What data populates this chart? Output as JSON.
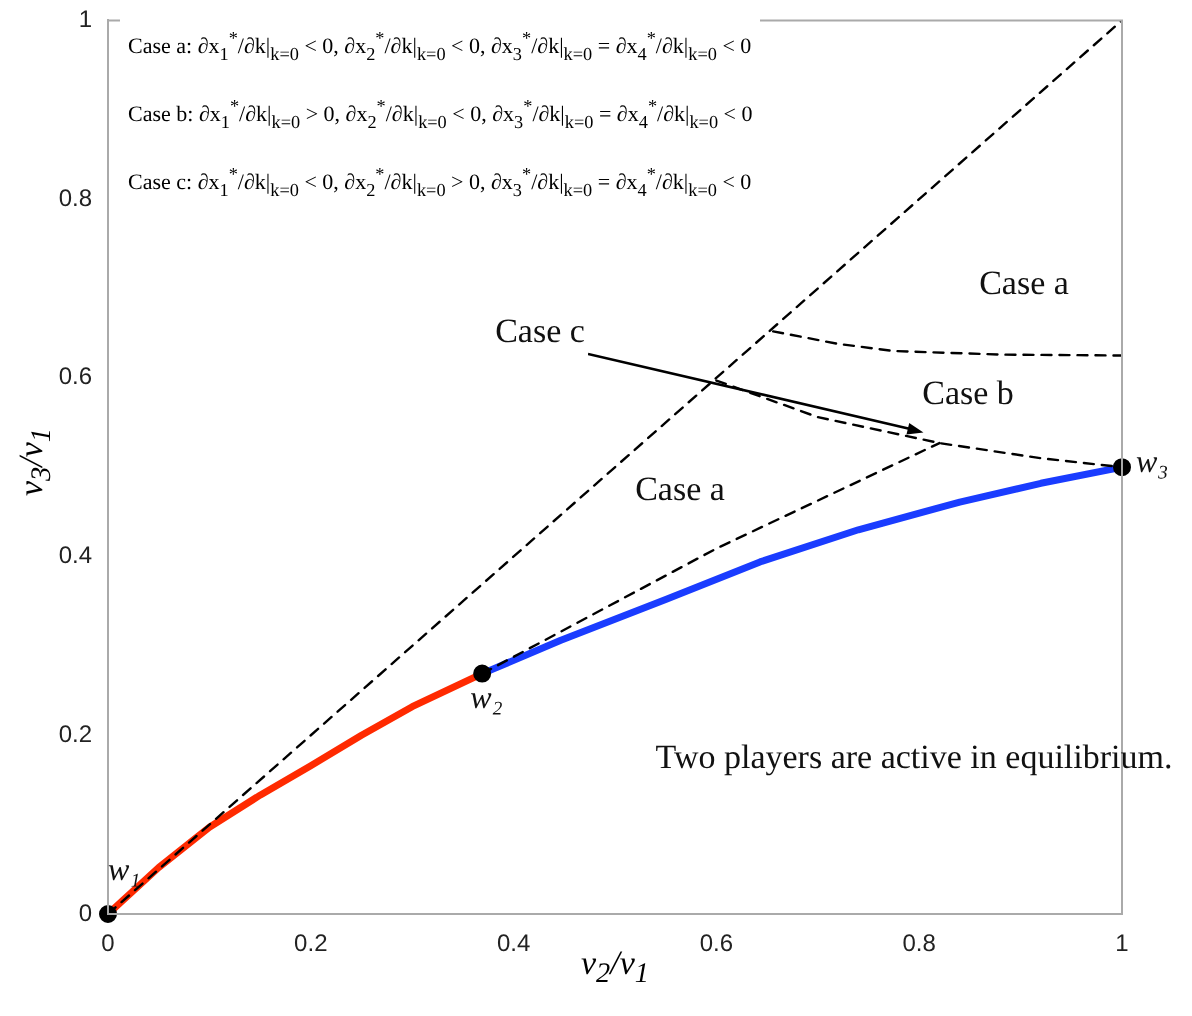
{
  "chart_data": {
    "type": "line",
    "xlabel": "v$_{2}$/v$_{1}$",
    "ylabel": "v$_{3}$/v$_{1}$",
    "xlim": [
      0,
      1
    ],
    "ylim": [
      0,
      1
    ],
    "xticks": [
      0,
      0.2,
      0.4,
      0.6,
      0.8,
      1
    ],
    "yticks": [
      0,
      0.2,
      0.4,
      0.6,
      0.8,
      1
    ],
    "grid": false,
    "legend": false,
    "series": [
      {
        "color": "#000000",
        "line_style": "dashed",
        "x": [
          0,
          1
        ],
        "values": [
          0,
          1
        ]
      },
      {
        "color": "#000000",
        "line_style": "dashed",
        "x": [
          0.369,
          0.6,
          0.82
        ],
        "values": [
          0.269,
          0.409,
          0.527
        ]
      },
      {
        "color": "#000000",
        "line_style": "dashed",
        "x": [
          0.6,
          0.7,
          0.82,
          0.92,
          1
        ],
        "values": [
          0.597,
          0.556,
          0.527,
          0.51,
          0.5
        ]
      },
      {
        "color": "#000000",
        "line_style": "dashed",
        "x": [
          0.656,
          0.72,
          0.775,
          0.88,
          1
        ],
        "values": [
          0.652,
          0.638,
          0.63,
          0.626,
          0.625
        ]
      },
      {
        "color": "#ff2a00",
        "line_style": "solid",
        "x": [
          0,
          0.05,
          0.1,
          0.15,
          0.2,
          0.25,
          0.3,
          0.369
        ],
        "values": [
          0,
          0.052,
          0.097,
          0.133,
          0.166,
          0.2,
          0.232,
          0.269
        ]
      },
      {
        "color": "#1a3cff",
        "line_style": "solid",
        "x": [
          0.369,
          0.446,
          0.55,
          0.643,
          0.74,
          0.84,
          0.92,
          1
        ],
        "values": [
          0.269,
          0.306,
          0.352,
          0.394,
          0.43,
          0.461,
          0.482,
          0.5
        ]
      },
      {
        "type": "scatter",
        "color": "#000000",
        "marker": "circle",
        "x": [
          0,
          0.369,
          1
        ],
        "values": [
          0,
          0.269,
          0.5
        ],
        "value_labels": [
          "w₁",
          "w₂",
          "w₃"
        ]
      }
    ],
    "annotations": [
      "Case a: ∂x$_{1}$$^{*}$/∂k|$_{k=0}$ < 0, ∂x$_{2}$$^{*}$/∂k|$_{k=0}$ < 0, ∂x$_{3}$$^{*}$/∂k|$_{k=0}$ = ∂x$_{4}$$^{*}$/∂k|$_{k=0}$ < 0",
      "Case b: ∂x$_{1}$$^{*}$/∂k|$_{k=0}$ > 0, ∂x$_{2}$$^{*}$/∂k|$_{k=0}$ < 0, ∂x$_{3}$$^{*}$/∂k|$_{k=0}$ = ∂x$_{4}$$^{*}$/∂k|$_{k=0}$ < 0",
      "Case c: ∂x$_{1}$$^{*}$/∂k|$_{k=0}$ < 0, ∂x$_{2}$$^{*}$/∂k|$_{k=0}$ > 0, ∂x$_{3}$$^{*}$/∂k|$_{k=0}$ = ∂x$_{4}$$^{*}$/∂k|$_{k=0}$ < 0",
      "Case a",
      "Case b",
      {
        "text": "Case c",
        "x": 0.805,
        "y": 0.53
      },
      "Case a",
      "Two players are active in equilibrium."
    ]
  }
}
